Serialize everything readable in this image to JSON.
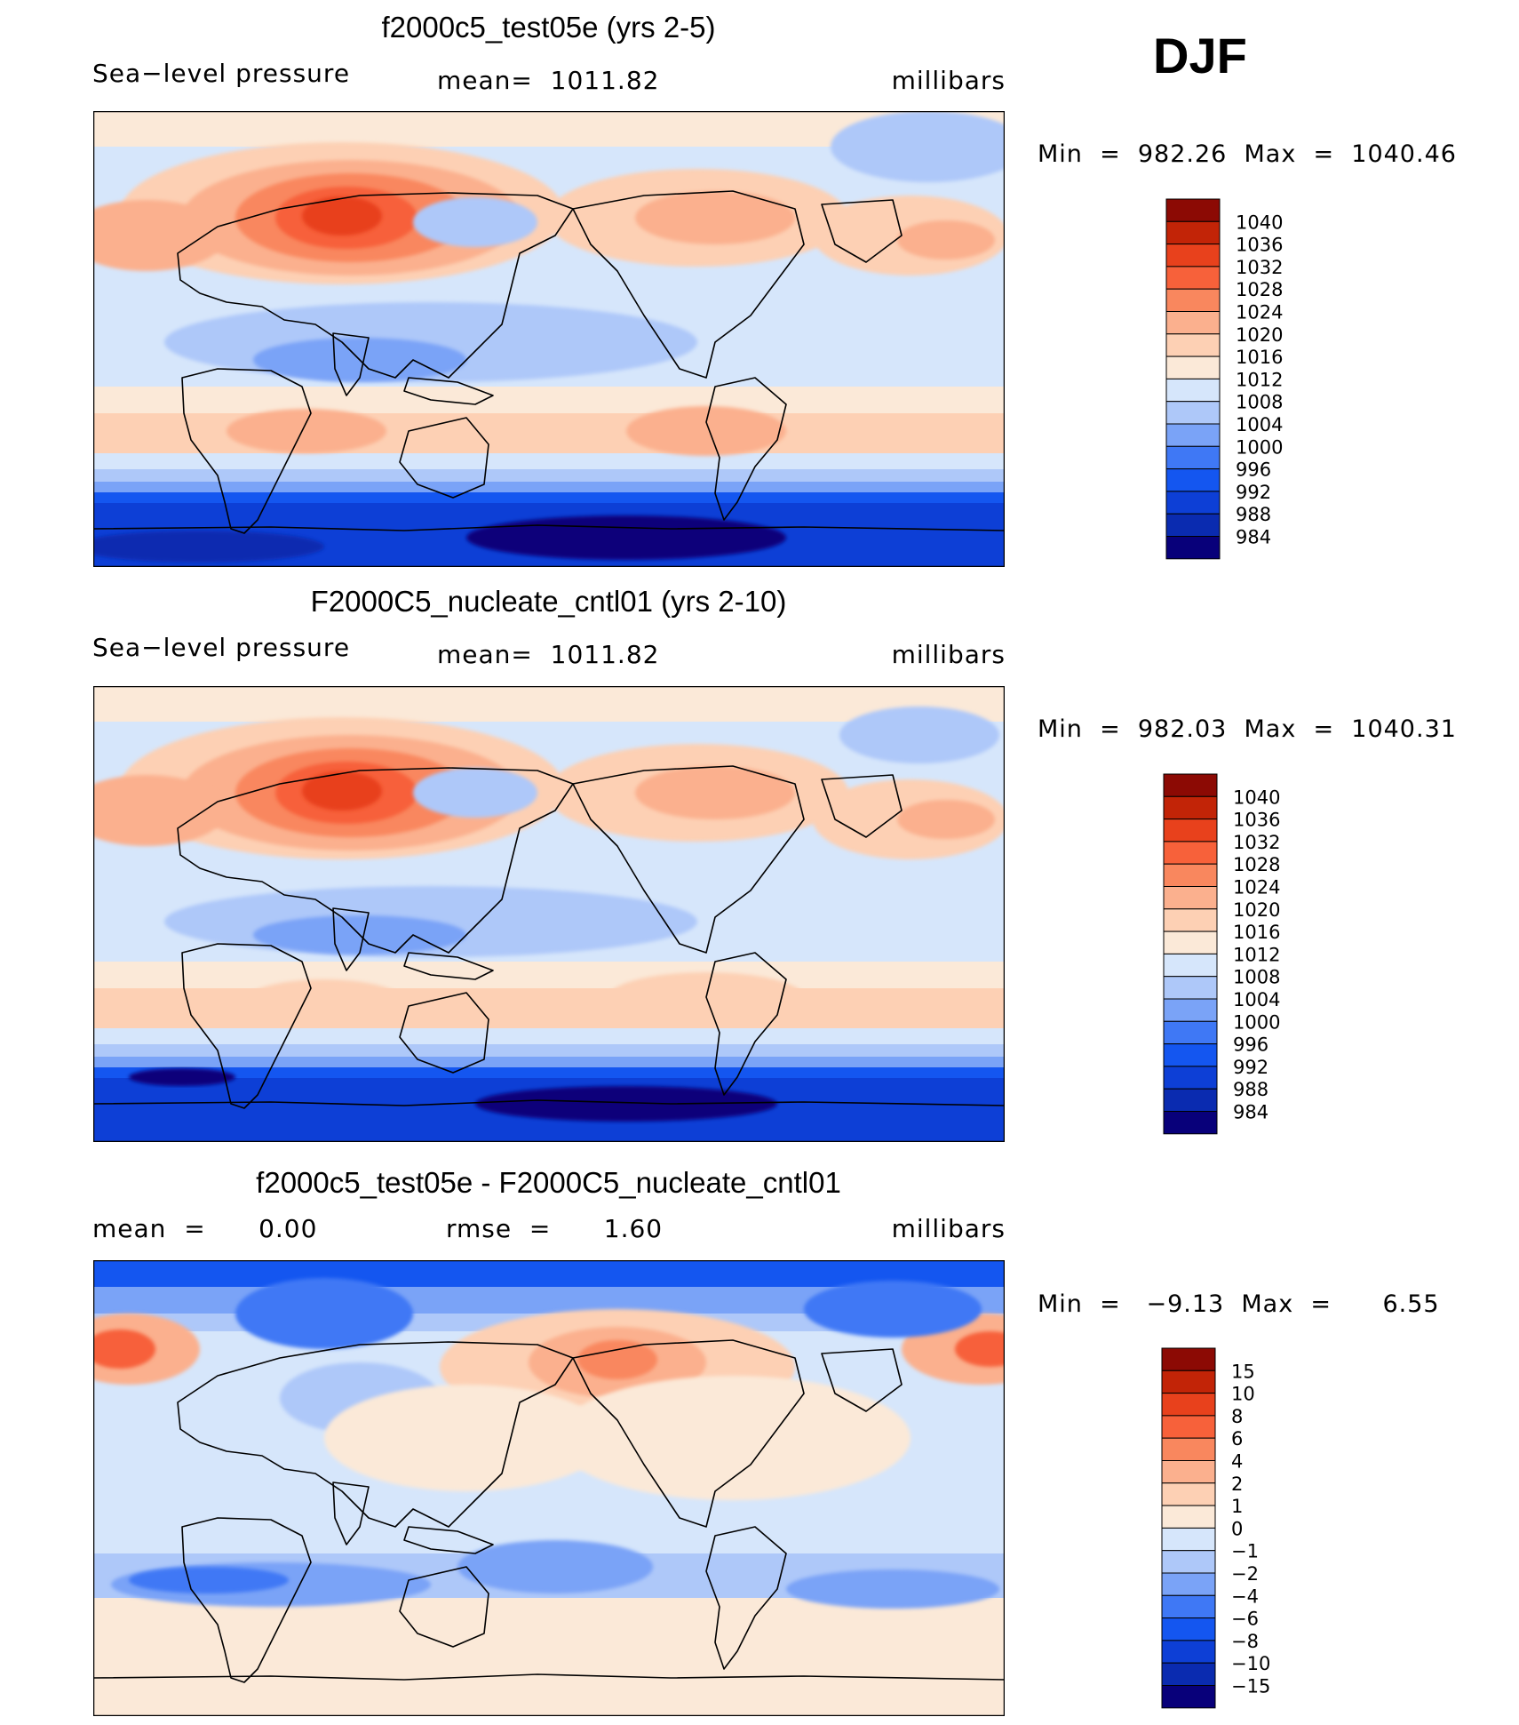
{
  "season": "DJF",
  "colors": {
    "scale": [
      "#08007a",
      "#0a2bb0",
      "#0d3fd6",
      "#1456f0",
      "#3f78f5",
      "#7aa3f7",
      "#aec8f9",
      "#d6e6fb",
      "#fbe9d8",
      "#fdd0b4",
      "#fbb08e",
      "#f9875e",
      "#f7613a",
      "#e8411c",
      "#c22407",
      "#8c0a04"
    ]
  },
  "panels": [
    {
      "title": "f2000c5_test05e (yrs 2-5)",
      "variable": "Sea−level pressure",
      "stat1": "mean=  1011.82",
      "stat2": "",
      "units": "millibars",
      "minmax": "Min  =  982.26  Max  =  1040.46",
      "levels": [
        "1040",
        "1036",
        "1032",
        "1028",
        "1024",
        "1020",
        "1016",
        "1012",
        "1008",
        "1004",
        "1000",
        "996",
        "992",
        "988",
        "984"
      ]
    },
    {
      "title": "F2000C5_nucleate_cntl01 (yrs 2-10)",
      "variable": "Sea−level pressure",
      "stat1": "mean=  1011.82",
      "stat2": "",
      "units": "millibars",
      "minmax": "Min  =  982.03  Max  =  1040.31",
      "levels": [
        "1040",
        "1036",
        "1032",
        "1028",
        "1024",
        "1020",
        "1016",
        "1012",
        "1008",
        "1004",
        "1000",
        "996",
        "992",
        "988",
        "984"
      ]
    },
    {
      "title": "f2000c5_test05e - F2000C5_nucleate_cntl01",
      "variable": "",
      "stat1": "mean  =      0.00",
      "stat2": "rmse  =      1.60",
      "units": "millibars",
      "minmax": "Min  =   −9.13  Max  =      6.55",
      "levels": [
        "15",
        "10",
        "8",
        "6",
        "4",
        "2",
        "1",
        "0",
        "−1",
        "−2",
        "−4",
        "−6",
        "−8",
        "−10",
        "−15"
      ]
    }
  ],
  "chart_data": [
    {
      "type": "heatmap",
      "title": "f2000c5_test05e (yrs 2-5)",
      "variable": "Sea-level pressure",
      "units": "millibars",
      "mean": 1011.82,
      "min": 982.26,
      "max": 1040.46,
      "levels": [
        984,
        988,
        992,
        996,
        1000,
        1004,
        1008,
        1012,
        1016,
        1020,
        1024,
        1028,
        1032,
        1036,
        1040
      ]
    },
    {
      "type": "heatmap",
      "title": "F2000C5_nucleate_cntl01 (yrs 2-10)",
      "variable": "Sea-level pressure",
      "units": "millibars",
      "mean": 1011.82,
      "min": 982.03,
      "max": 1040.31,
      "levels": [
        984,
        988,
        992,
        996,
        1000,
        1004,
        1008,
        1012,
        1016,
        1020,
        1024,
        1028,
        1032,
        1036,
        1040
      ]
    },
    {
      "type": "heatmap",
      "title": "f2000c5_test05e - F2000C5_nucleate_cntl01",
      "units": "millibars",
      "mean": 0.0,
      "rmse": 1.6,
      "min": -9.13,
      "max": 6.55,
      "levels": [
        -15,
        -10,
        -8,
        -6,
        -4,
        -2,
        -1,
        0,
        1,
        2,
        4,
        6,
        8,
        10,
        15
      ]
    }
  ]
}
